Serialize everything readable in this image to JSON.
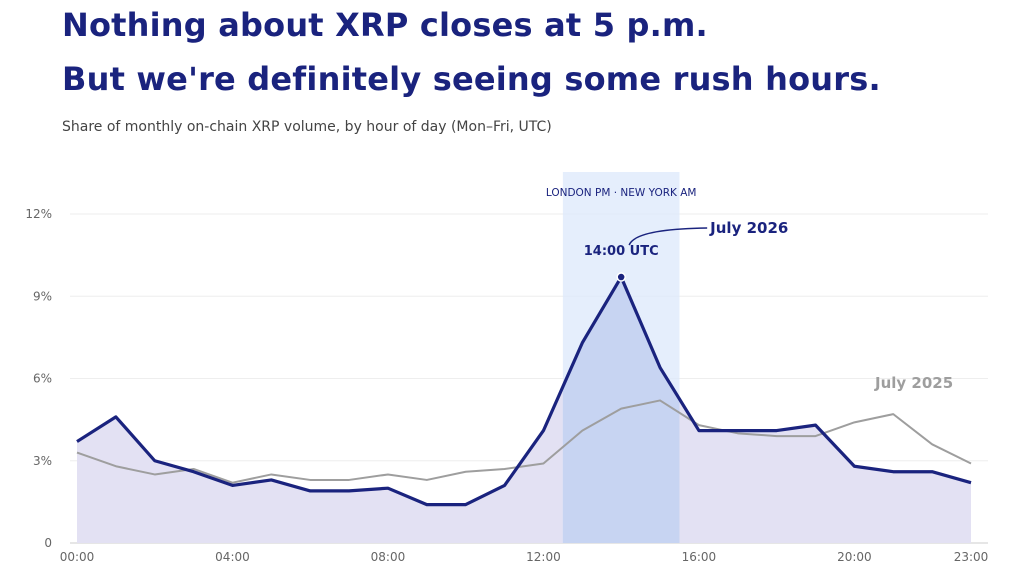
{
  "headline": {
    "line1": "Nothing about XRP closes at 5 p.m.",
    "line2": "But we're definitely seeing some rush hours."
  },
  "subtitle": "Share of monthly on-chain XRP volume, by hour of day (Mon–Fri, UTC)",
  "colors": {
    "primary": "#1a237e",
    "secondary": "#9e9e9e",
    "area_fill": "#e3e1f3",
    "band_fill": "#dce8fb",
    "band_area_fill": "#c7d4f2",
    "grid": "#eeeeee",
    "axis_text": "#666666"
  },
  "chart_data": {
    "type": "line",
    "x": [
      "00:00",
      "01:00",
      "02:00",
      "03:00",
      "04:00",
      "05:00",
      "06:00",
      "07:00",
      "08:00",
      "09:00",
      "10:00",
      "11:00",
      "12:00",
      "13:00",
      "14:00",
      "15:00",
      "16:00",
      "17:00",
      "18:00",
      "19:00",
      "20:00",
      "21:00",
      "22:00",
      "23:00"
    ],
    "series": [
      {
        "name": "July 2026",
        "values": [
          3.7,
          4.6,
          3.0,
          2.6,
          2.1,
          2.3,
          1.9,
          1.9,
          2.0,
          1.4,
          1.4,
          2.1,
          4.1,
          7.3,
          9.7,
          6.4,
          4.1,
          4.1,
          4.1,
          4.3,
          2.8,
          2.6,
          2.6,
          2.2
        ]
      },
      {
        "name": "July 2025",
        "values": [
          3.3,
          2.8,
          2.5,
          2.7,
          2.2,
          2.5,
          2.3,
          2.3,
          2.5,
          2.3,
          2.6,
          2.7,
          2.9,
          4.1,
          4.9,
          5.2,
          4.3,
          4.0,
          3.9,
          3.9,
          4.4,
          4.7,
          3.6,
          2.9
        ]
      }
    ],
    "xticks": [
      "00:00",
      "04:00",
      "08:00",
      "12:00",
      "16:00",
      "20:00",
      "23:00"
    ],
    "yticks": [
      "0",
      "3%",
      "6%",
      "9%",
      "12%"
    ],
    "ylim": [
      0,
      12
    ],
    "highlight_band": {
      "from": "12:30",
      "to": "15:30",
      "label": "LONDON PM · NEW YORK AM"
    },
    "annotations": [
      {
        "text": "14:00 UTC",
        "x": "14:00",
        "series": "July 2026"
      }
    ],
    "series_labels": [
      "July 2026",
      "July 2025"
    ],
    "grid": true
  }
}
